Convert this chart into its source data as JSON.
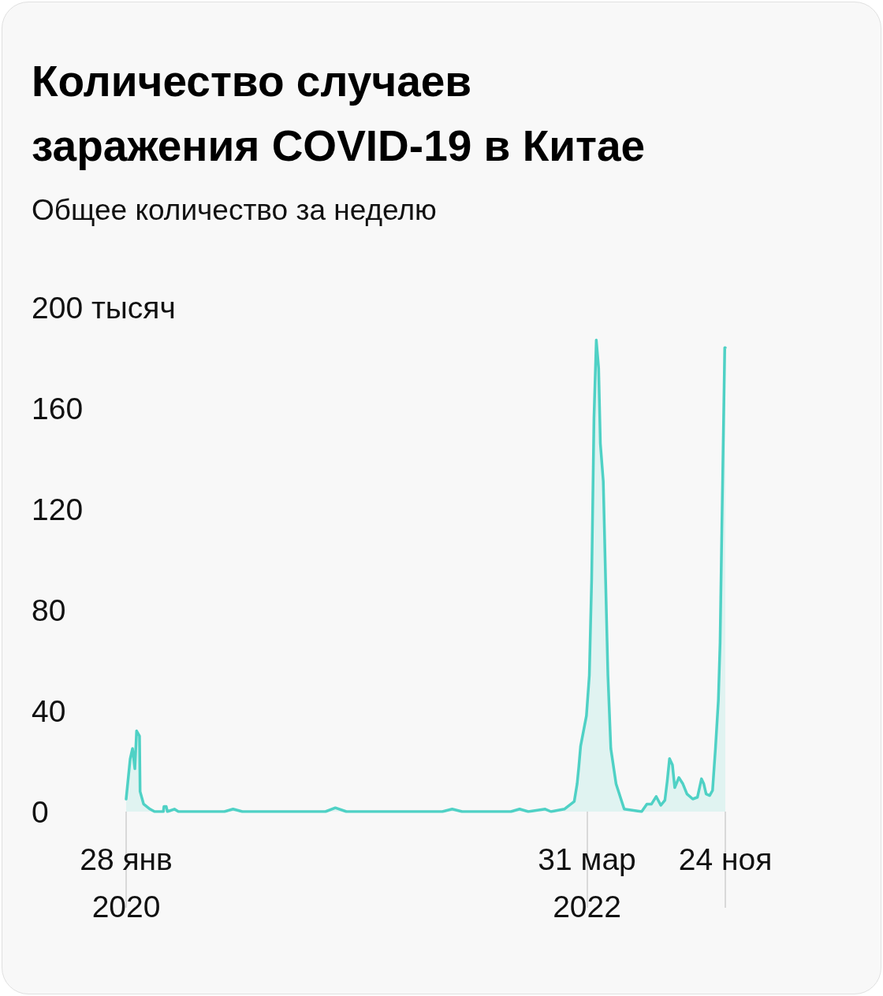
{
  "chart_data": {
    "type": "area",
    "title": "Количество случаев заражения COVID-19 в Китае",
    "subtitle": "Общее количество за неделю",
    "color": "#4fd1c5",
    "x": [
      "2020-01-28",
      "2020-02-04",
      "2020-02-08",
      "2020-02-12",
      "2020-02-15",
      "2020-02-20",
      "2020-02-21",
      "2020-02-27",
      "2020-03-09",
      "2020-03-17",
      "2020-04-01",
      "2020-04-02",
      "2020-04-06",
      "2020-04-08",
      "2020-04-20",
      "2020-04-27",
      "2020-07-15",
      "2020-07-30",
      "2020-08-15",
      "2021-01-05",
      "2021-01-22",
      "2021-02-10",
      "2021-07-25",
      "2021-08-11",
      "2021-08-28",
      "2021-11-20",
      "2021-12-05",
      "2021-12-20",
      "2022-01-18",
      "2022-01-28",
      "2022-02-20",
      "2022-03-09",
      "2022-03-14",
      "2022-03-17",
      "2022-03-20",
      "2022-03-25",
      "2022-03-30",
      "2022-04-04",
      "2022-04-08",
      "2022-04-12",
      "2022-04-16",
      "2022-04-20",
      "2022-04-23",
      "2022-04-28",
      "2022-05-02",
      "2022-05-06",
      "2022-05-11",
      "2022-05-20",
      "2022-06-03",
      "2022-07-03",
      "2022-07-12",
      "2022-07-20",
      "2022-07-28",
      "2022-08-05",
      "2022-08-12",
      "2022-08-16",
      "2022-08-20",
      "2022-08-25",
      "2022-08-29",
      "2022-09-05",
      "2022-09-12",
      "2022-09-19",
      "2022-09-29",
      "2022-10-07",
      "2022-10-14",
      "2022-10-18",
      "2022-10-22",
      "2022-10-28",
      "2022-11-02",
      "2022-11-07",
      "2022-11-12",
      "2022-11-15",
      "2022-11-18",
      "2022-11-22",
      "2022-11-23",
      "2022-11-24"
    ],
    "values": [
      5,
      21,
      25,
      17,
      32,
      30,
      8,
      3,
      1,
      0,
      0,
      2,
      2,
      0,
      1,
      0,
      0,
      1,
      0,
      0,
      1.5,
      0,
      0,
      1,
      0,
      0,
      1,
      0,
      1,
      0,
      1,
      4,
      11,
      18,
      26,
      32,
      38,
      54,
      92,
      156,
      187,
      176,
      146,
      131,
      92,
      54,
      25,
      11,
      1,
      0,
      3,
      3,
      6,
      2.5,
      4.5,
      12,
      21,
      18.5,
      9.5,
      13.5,
      11,
      7,
      5,
      5.7,
      13,
      11,
      7,
      6.4,
      8.4,
      25,
      44,
      67,
      112,
      169,
      184,
      184
    ],
    "xlim": [
      "2020-01-28",
      "2022-11-24"
    ],
    "xticks": [
      {
        "value": "2020-01-28",
        "label": "28 янв\n2020"
      },
      {
        "value": "2022-03-31",
        "label": "31 мар\n2022"
      },
      {
        "value": "2022-11-24",
        "label": "24 ноя"
      }
    ],
    "ylim": [
      0,
      200
    ],
    "yticks": [
      0,
      40,
      80,
      120,
      160,
      {
        "value": 200,
        "label": "200 тысяч"
      }
    ]
  }
}
